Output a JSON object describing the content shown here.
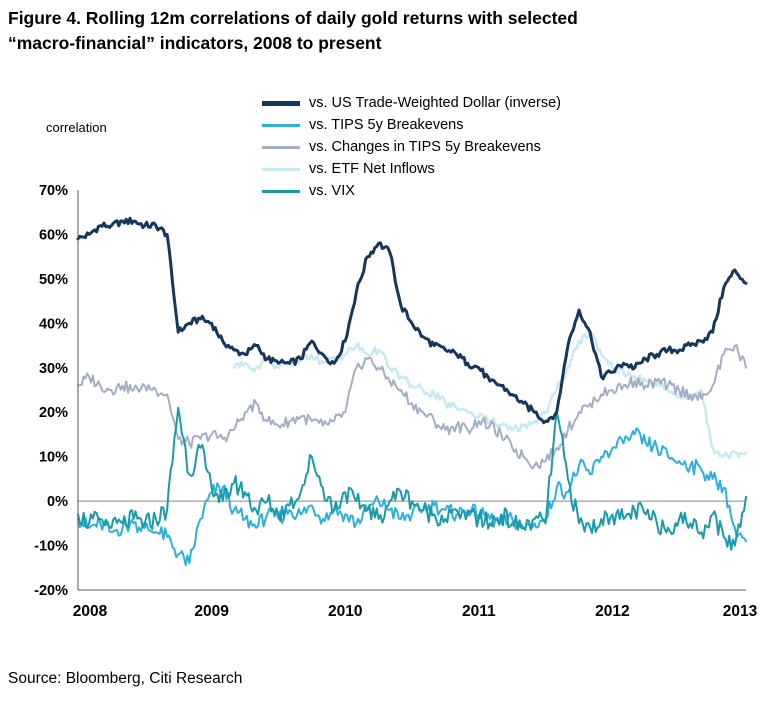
{
  "title": {
    "line1": "Figure 4. Rolling 12m correlations of daily gold returns with selected",
    "line2": "“macro-financial” indicators, 2008 to present"
  },
  "axis_label": "correlation",
  "source": "Source: Bloomberg, Citi Research",
  "chart_data": {
    "type": "line",
    "title": "Rolling 12m correlations of daily gold returns with selected macro-financial indicators",
    "xlabel": "",
    "ylabel": "correlation",
    "ylim": [
      -20,
      70
    ],
    "xlim": [
      2008,
      2013
    ],
    "grid": false,
    "legend_position": "top",
    "x_ticks": [
      2008,
      2009,
      2010,
      2011,
      2012,
      2013
    ],
    "y_ticks": [
      70,
      60,
      50,
      40,
      30,
      20,
      10,
      0,
      -10,
      -20
    ],
    "y_tick_suffix": "%",
    "x_monthly_start": 2008.0,
    "months_per_point": 1,
    "draw_order": [
      3,
      2,
      1,
      4,
      0
    ],
    "series": [
      {
        "name": "vs. US Trade-Weighted Dollar (inverse)",
        "color": "#16365c",
        "width": 3,
        "noise": 0.8,
        "values": [
          59,
          60,
          62,
          62,
          63,
          63,
          62,
          62,
          60,
          38,
          40,
          41,
          40,
          36,
          34,
          33,
          35,
          32,
          31,
          31,
          32,
          36,
          33,
          31,
          36,
          47,
          55,
          58,
          56,
          44,
          40,
          37,
          35,
          34,
          33,
          31,
          30,
          27,
          26,
          24,
          22,
          20,
          18,
          20,
          35,
          43,
          38,
          28,
          29,
          31,
          30,
          32,
          33,
          34,
          34,
          35,
          36,
          38,
          48,
          52,
          49
        ]
      },
      {
        "name": "vs. TIPS 5y Breakevens",
        "color": "#2fb0dc",
        "width": 2,
        "noise": 1.8,
        "values": [
          -4,
          -6,
          -5,
          -7,
          -6,
          -5,
          -6,
          -7,
          -8,
          -12,
          -14,
          -4,
          2,
          3,
          -2,
          -4,
          -6,
          -3,
          -4,
          -2,
          -3,
          -1,
          -4,
          -2,
          -3,
          -5,
          -2,
          0,
          -2,
          -4,
          -3,
          -2,
          -1,
          -2,
          -3,
          -2,
          -3,
          -4,
          -5,
          -4,
          -6,
          -5,
          -4,
          3,
          2,
          8,
          6,
          10,
          12,
          13,
          15,
          13,
          12,
          10,
          9,
          8,
          7,
          5,
          3,
          -6,
          -9
        ]
      },
      {
        "name": "vs. Changes in TIPS 5y Breakevens",
        "color": "#a3aec5",
        "width": 2,
        "noise": 1.3,
        "values": [
          26,
          28,
          26,
          25,
          26,
          25,
          26,
          25,
          24,
          14,
          13,
          14,
          15,
          14,
          16,
          20,
          22,
          18,
          17,
          18,
          19,
          18,
          17,
          18,
          20,
          30,
          32,
          30,
          27,
          25,
          22,
          20,
          18,
          16,
          17,
          16,
          18,
          17,
          15,
          12,
          10,
          8,
          9,
          12,
          16,
          20,
          22,
          24,
          25,
          26,
          27,
          26,
          27,
          26,
          25,
          24,
          23,
          26,
          33,
          35,
          30
        ]
      },
      {
        "name": "vs. ETF Net Inflows",
        "color": "#c6e9f2",
        "width": 2.5,
        "noise": 1.0,
        "values": [
          null,
          null,
          null,
          null,
          null,
          null,
          null,
          null,
          null,
          null,
          null,
          null,
          null,
          null,
          30,
          31,
          30,
          32,
          30,
          31,
          32,
          33,
          31,
          32,
          33,
          35,
          33,
          34,
          30,
          28,
          26,
          25,
          24,
          22,
          21,
          20,
          19,
          18,
          17,
          16,
          17,
          18,
          20,
          25,
          30,
          36,
          38,
          33,
          30,
          29,
          28,
          27,
          26,
          25,
          24,
          23,
          25,
          12,
          10,
          11,
          11
        ]
      },
      {
        "name": "vs. VIX",
        "color": "#1b9aaa",
        "width": 2,
        "noise": 2.2,
        "values": [
          -3,
          -5,
          -4,
          -6,
          -5,
          -4,
          -5,
          -4,
          -2,
          21,
          6,
          12,
          3,
          0,
          4,
          2,
          -2,
          0,
          -3,
          -1,
          2,
          10,
          3,
          -2,
          2,
          0,
          -2,
          -4,
          0,
          2,
          0,
          -2,
          -3,
          -4,
          -2,
          -3,
          -4,
          -5,
          -3,
          -5,
          -6,
          -4,
          -5,
          20,
          5,
          -5,
          -6,
          -4,
          -3,
          -4,
          -2,
          -3,
          -5,
          -6,
          -4,
          -5,
          -7,
          -3,
          -8,
          -10,
          1
        ]
      }
    ]
  }
}
